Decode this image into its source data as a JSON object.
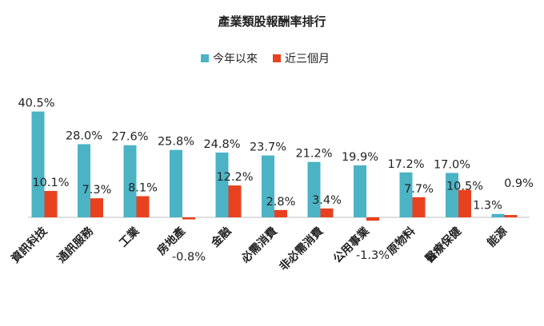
{
  "chart_data": {
    "type": "bar",
    "title": "產業類股報酬率排行",
    "categories": [
      "資訊科技",
      "通訊服務",
      "工業",
      "房地產",
      "金融",
      "必需消費",
      "非必需消費",
      "公用事業",
      "原物料",
      "醫療保健",
      "能源"
    ],
    "series": [
      {
        "name": "今年以來",
        "color": "#4bb3c4",
        "values": [
          40.5,
          28.0,
          27.6,
          25.8,
          24.8,
          23.7,
          21.2,
          19.9,
          17.2,
          17.0,
          1.3
        ],
        "labels": [
          "40.5%",
          "28.0%",
          "27.6%",
          "25.8%",
          "24.8%",
          "23.7%",
          "21.2%",
          "19.9%",
          "17.2%",
          "17.0%",
          "1.3%"
        ]
      },
      {
        "name": "近三個月",
        "color": "#e8411f",
        "values": [
          10.1,
          7.3,
          8.1,
          -0.8,
          12.2,
          2.8,
          3.4,
          -1.3,
          7.7,
          10.5,
          0.9
        ],
        "labels": [
          "10.1%",
          "7.3%",
          "8.1%",
          "-0.8%",
          "12.2%",
          "2.8%",
          "3.4%",
          "-1.3%",
          "7.7%",
          "10.5%",
          "0.9%"
        ]
      }
    ],
    "legend_position": "top-center",
    "grid": false,
    "ylim": [
      -2,
      42
    ]
  }
}
